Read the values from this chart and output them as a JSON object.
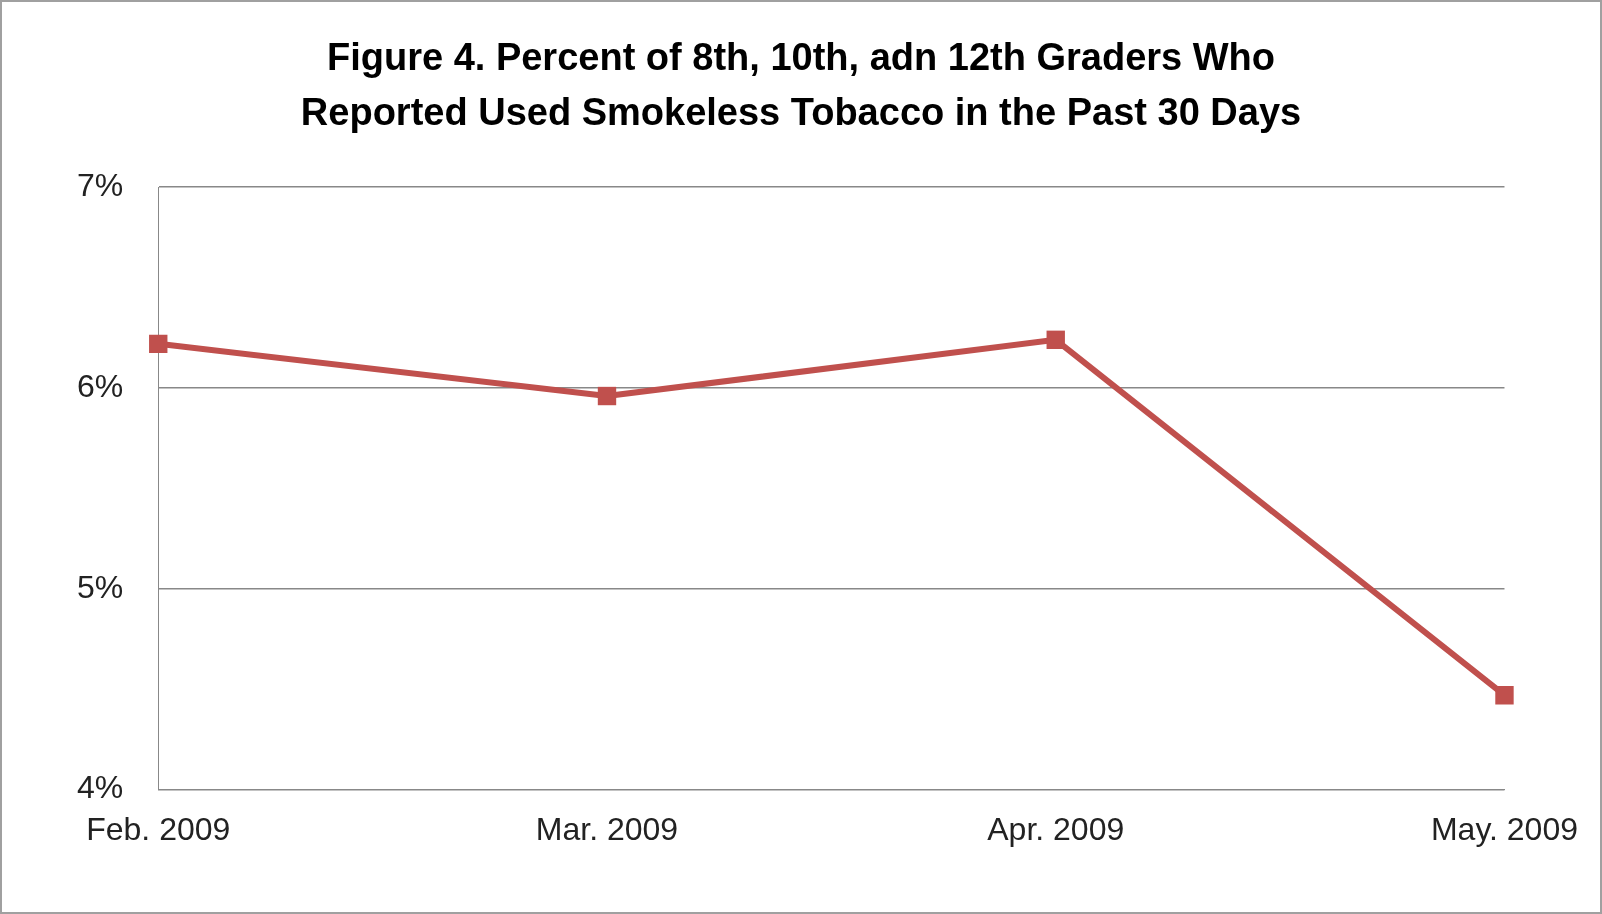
{
  "chart_data": {
    "type": "line",
    "title": "Figure 4. Percent of 8th, 10th, adn 12th Graders Who Reported Used Smokeless Tobacco in the Past 30 Days",
    "categories": [
      "Feb. 2009",
      "Mar. 2009",
      "Apr. 2009",
      "May. 2009"
    ],
    "series": [
      {
        "color": "#c0504d",
        "values": [
          6.22,
          5.96,
          6.24,
          4.47
        ]
      }
    ],
    "ylim": [
      4,
      7
    ],
    "yticks": [
      {
        "value": 4,
        "label": "4%"
      },
      {
        "value": 5,
        "label": "5%"
      },
      {
        "value": 6,
        "label": "6%"
      },
      {
        "value": 7,
        "label": "7%"
      }
    ],
    "grid": "y",
    "marker": "square",
    "line_style": "solid",
    "legend": false
  }
}
